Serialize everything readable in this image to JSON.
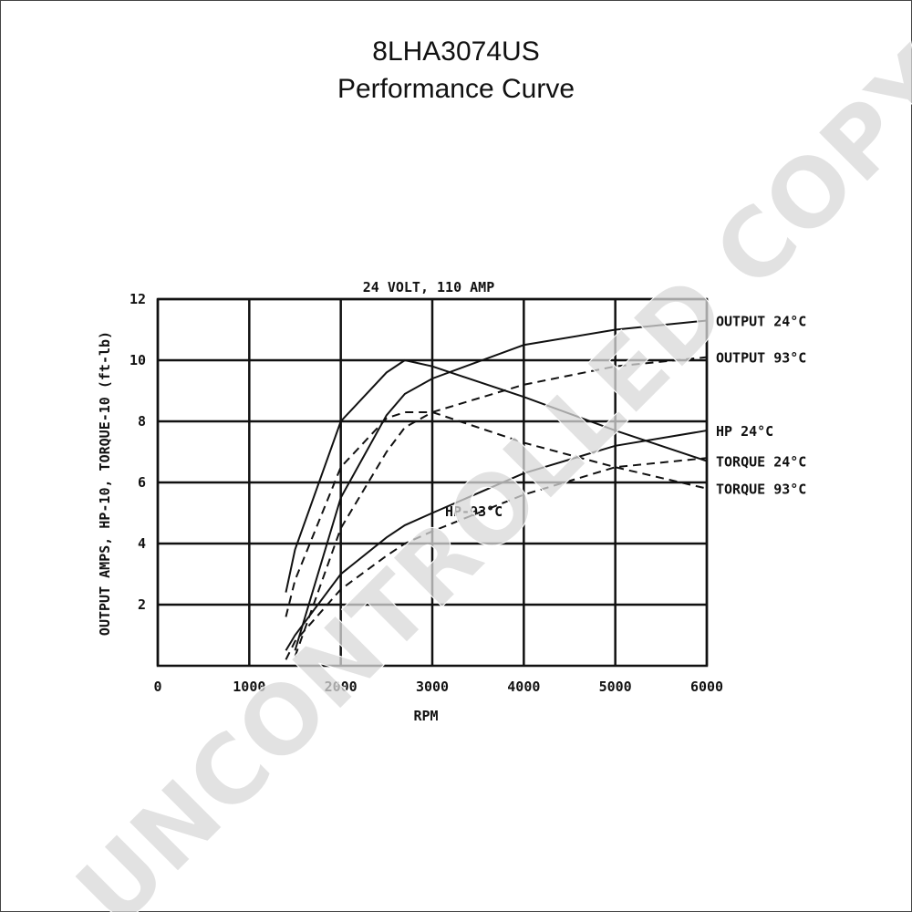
{
  "chart_data": {
    "type": "line",
    "title": "8LHA3074US",
    "subtitle": "Performance Curve",
    "chart_label": "24 VOLT, 110 AMP",
    "x_label": "RPM",
    "y_label": "OUTPUT AMPS, HP-10, TORQUE-10 (ft-lb)",
    "watermark": "UNCONTROLLED COPY",
    "annotations": [
      "HP-93°C"
    ],
    "x": [
      1400,
      1500,
      2000,
      2500,
      2700,
      3000,
      4000,
      5000,
      6000
    ],
    "series": [
      {
        "name": "OUTPUT 24°C",
        "color": "#111111",
        "dash": false,
        "values": [
          null,
          0.5,
          5.5,
          8.2,
          8.9,
          9.4,
          10.5,
          11,
          11.3
        ]
      },
      {
        "name": "OUTPUT 93°C",
        "color": "#111111",
        "dash": true,
        "values": [
          null,
          0.3,
          4.5,
          7,
          7.8,
          8.3,
          9.2,
          9.8,
          10.1
        ]
      },
      {
        "name": "HP 24°C",
        "color": "#111111",
        "dash": false,
        "values": [
          0.5,
          1,
          3,
          4.2,
          4.6,
          5,
          6.3,
          7.2,
          7.7
        ]
      },
      {
        "name": "TORQUE 24°C",
        "color": "#111111",
        "dash": false,
        "values": [
          2.4,
          3.8,
          8,
          9.6,
          10,
          9.8,
          8.8,
          7.7,
          6.7
        ]
      },
      {
        "name": "TORQUE 93°C",
        "color": "#111111",
        "dash": true,
        "values": [
          1.6,
          2.8,
          6.5,
          8.1,
          8.3,
          8.3,
          7.3,
          6.5,
          5.8
        ]
      },
      {
        "name": "HP-93°C",
        "color": "#111111",
        "dash": true,
        "values": [
          0.2,
          0.8,
          2.5,
          3.6,
          4,
          4.4,
          5.6,
          6.5,
          6.8
        ]
      }
    ],
    "xlim": [
      0,
      6000
    ],
    "xticks": [
      0,
      1000,
      2000,
      3000,
      4000,
      5000,
      6000
    ],
    "ylim": [
      0,
      12
    ],
    "yticks": [
      2,
      4,
      6,
      8,
      10,
      12
    ],
    "grid": true
  }
}
